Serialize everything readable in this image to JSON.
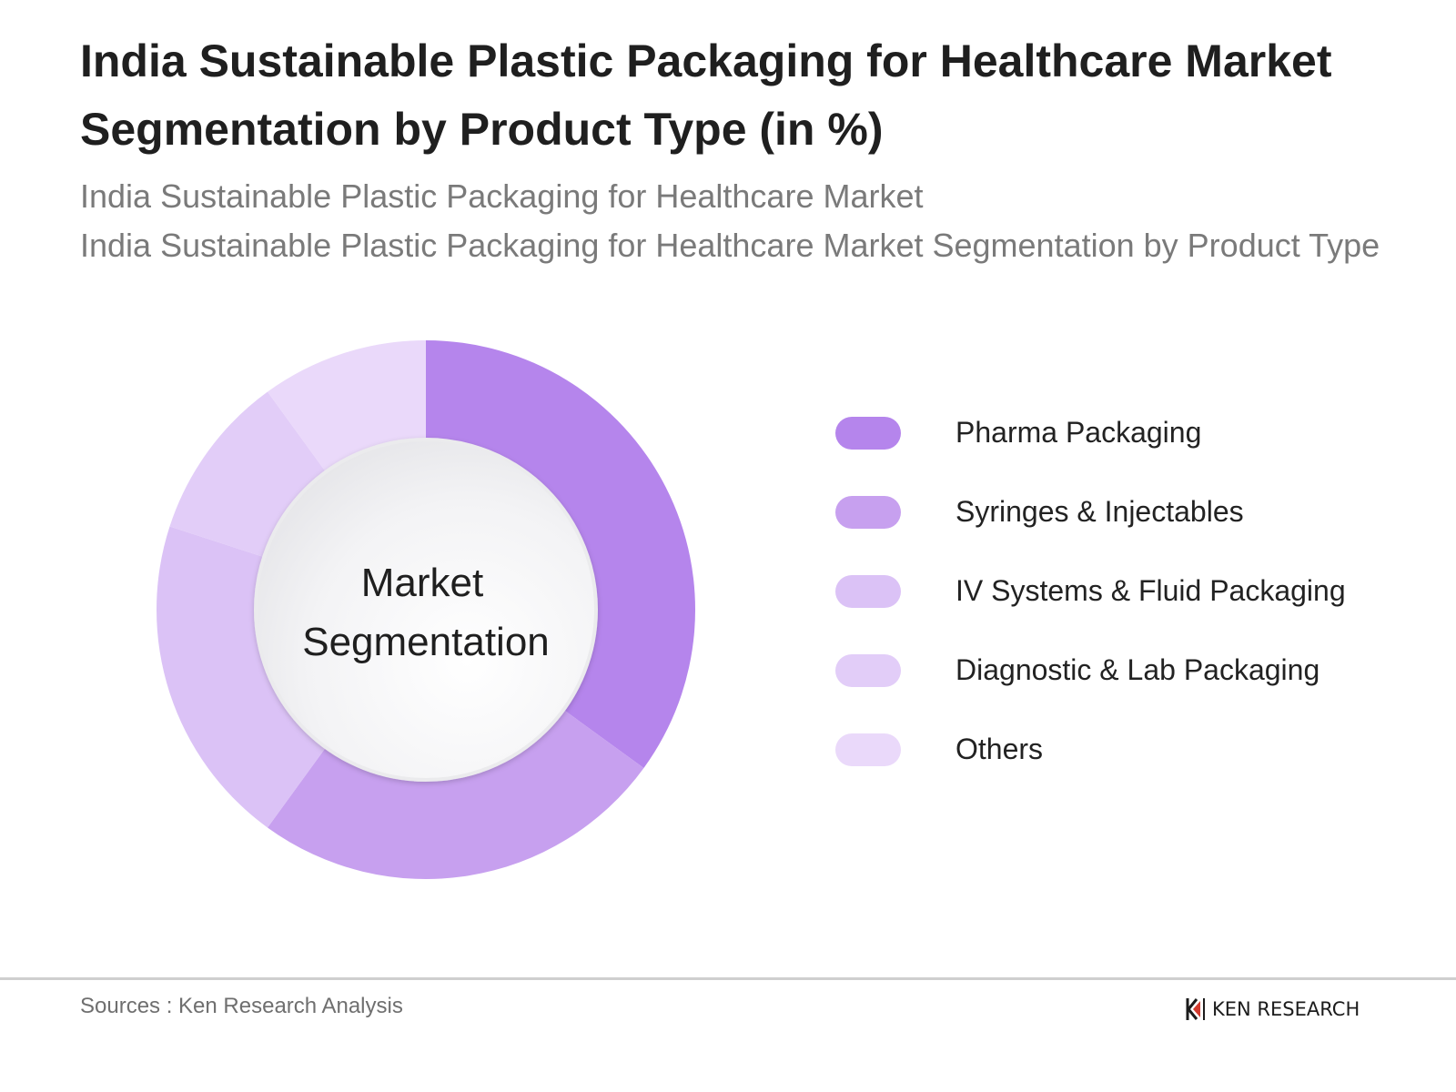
{
  "title": "India Sustainable Plastic Packaging for Healthcare Market Segmentation by Product Type (in %)",
  "subtitle_1": "India Sustainable Plastic Packaging for Healthcare Market",
  "subtitle_2": "India Sustainable Plastic Packaging for Healthcare Market Segmentation by Product Type",
  "center_label": [
    "Market",
    "Segmentation"
  ],
  "source": "Sources : Ken Research Analysis",
  "logo_text": "KEN RESEARCH",
  "logo_icon": "ken-research-logo-icon",
  "chart_data": {
    "type": "pie",
    "donut": true,
    "legend_position": "right",
    "categories": [
      "Pharma Packaging",
      "Syringes & Injectables",
      "IV Systems & Fluid Packaging",
      "Diagnostic & Lab Packaging",
      "Others"
    ],
    "values": [
      35,
      25,
      20,
      10,
      10
    ],
    "colors": [
      "#b585ec",
      "#c7a0ef",
      "#dbc2f6",
      "#e2cdf8",
      "#ead9fa"
    ]
  }
}
